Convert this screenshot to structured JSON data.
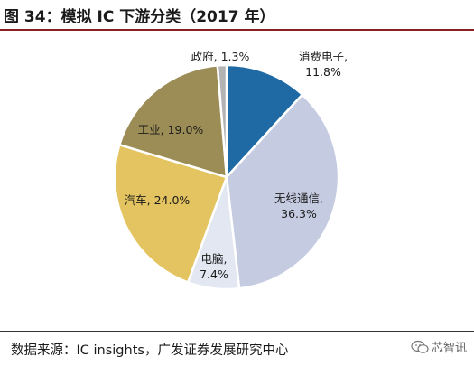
{
  "title": "图 34：模拟 IC 下游分类（2017 年）",
  "source": "数据来源：IC insights，广发证券发展研究中心",
  "watermark": "芯智讯",
  "chart_data": {
    "type": "pie",
    "title": "图 34：模拟 IC 下游分类（2017 年）",
    "unit": "%",
    "start": "12 o'clock, clockwise",
    "slices": [
      {
        "label": "消费电子",
        "value": 11.8,
        "value_text": "11.8%",
        "color": "#1f6aa5"
      },
      {
        "label": "无线通信",
        "value": 36.3,
        "value_text": "36.3%",
        "color": "#c5cce2"
      },
      {
        "label": "电脑",
        "value": 7.4,
        "value_text": "7.4%",
        "color": "#e2e7f2"
      },
      {
        "label": "汽车",
        "value": 24.0,
        "value_text": "24.0%",
        "color": "#e3c460"
      },
      {
        "label": "工业",
        "value": 19.0,
        "value_text": "19.0%",
        "color": "#9c8d56"
      },
      {
        "label": "政府",
        "value": 1.3,
        "value_text": "1.3%",
        "color": "#b3b3b3"
      }
    ]
  }
}
